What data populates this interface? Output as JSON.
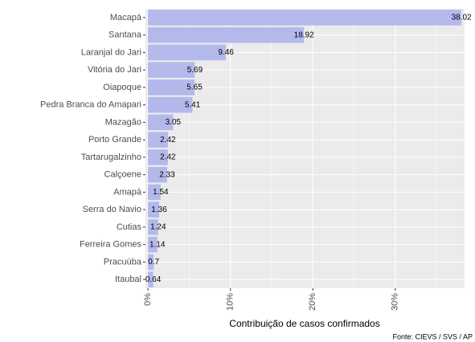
{
  "chart_data": {
    "type": "bar",
    "orientation": "horizontal",
    "categories": [
      "Macapá",
      "Santana",
      "Laranjal do Jari",
      "Vitória do Jari",
      "Oiapoque",
      "Pedra Branca do Amapari",
      "Mazagão",
      "Porto Grande",
      "Tartarugalzinho",
      "Calçoene",
      "Amapá",
      "Serra do Navio",
      "Cutias",
      "Ferreira Gomes",
      "Pracuúba",
      "Itaubal"
    ],
    "values": [
      38.02,
      18.92,
      9.46,
      5.69,
      5.65,
      5.41,
      3.05,
      2.42,
      2.42,
      2.33,
      1.54,
      1.36,
      1.24,
      1.14,
      0.7,
      0.64
    ],
    "color": "#b4b9ec",
    "xlim": [
      -0.3,
      38.4
    ],
    "xticks": [
      {
        "value": 0,
        "label": "0%"
      },
      {
        "value": 10,
        "label": "10%"
      },
      {
        "value": 20,
        "label": "20%"
      },
      {
        "value": 30,
        "label": "30%"
      }
    ],
    "xminor": [
      5,
      15,
      25,
      35
    ],
    "grid": true,
    "x_label": "Contribuição de casos confirmados",
    "caption": "Fonte: CIEVS / SVS / AP"
  }
}
